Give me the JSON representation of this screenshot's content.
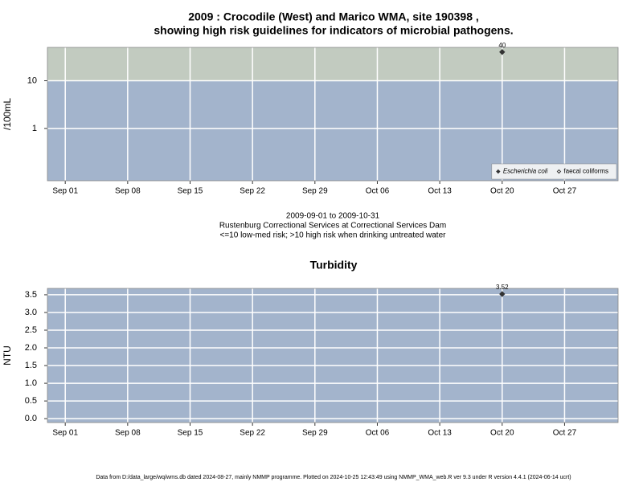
{
  "chart_data": [
    {
      "type": "scatter",
      "title": [
        "2009 : Crocodile (West) and Marico WMA, site 190398 ,",
        "showing high risk guidelines for indicators of microbial pathogens."
      ],
      "y_label": "/100mL",
      "notes": [
        "2009-09-01 to 2009-10-31",
        "Rustenburg Correctional Services at Correctional Services Dam",
        "<=10 low-med risk; >10 high risk when drinking untreated water"
      ],
      "log_scale": true,
      "threshold": 10,
      "band_colors": {
        "above": "#c2cbc0",
        "below": "#a3b4cc"
      },
      "grid": true,
      "legend": "bottom-right",
      "xlim": [
        "08-30",
        "11-02"
      ],
      "xticks": [
        {
          "value": "09-01",
          "label": "Sep 01"
        },
        {
          "value": "09-08",
          "label": "Sep 08"
        },
        {
          "value": "09-15",
          "label": "Sep 15"
        },
        {
          "value": "09-22",
          "label": "Sep 22"
        },
        {
          "value": "09-29",
          "label": "Sep 29"
        },
        {
          "value": "10-06",
          "label": "Oct 06"
        },
        {
          "value": "10-13",
          "label": "Oct 13"
        },
        {
          "value": "10-20",
          "label": "Oct 20"
        },
        {
          "value": "10-27",
          "label": "Oct 27"
        }
      ],
      "ylim": [
        0.08,
        50
      ],
      "yticks": [
        1,
        10
      ],
      "series": [
        {
          "name": "Escherichia coli",
          "color": "#333333",
          "marker": "filled",
          "font_style": "italic",
          "x": [
            "10-20"
          ],
          "values": [
            40
          ]
        },
        {
          "name": "faecal coliforms",
          "color": "#333333",
          "marker": "open",
          "font_style": "normal",
          "x": [],
          "values": []
        }
      ]
    },
    {
      "type": "scatter",
      "title": [
        "Turbidity"
      ],
      "y_label": "NTU",
      "log_scale": false,
      "background": "#a3b4cc",
      "grid": true,
      "xlim": [
        "08-30",
        "11-02"
      ],
      "xticks": [
        {
          "value": "09-01",
          "label": "Sep 01"
        },
        {
          "value": "09-08",
          "label": "Sep 08"
        },
        {
          "value": "09-15",
          "label": "Sep 15"
        },
        {
          "value": "09-22",
          "label": "Sep 22"
        },
        {
          "value": "09-29",
          "label": "Sep 29"
        },
        {
          "value": "10-06",
          "label": "Oct 06"
        },
        {
          "value": "10-13",
          "label": "Oct 13"
        },
        {
          "value": "10-20",
          "label": "Oct 20"
        },
        {
          "value": "10-27",
          "label": "Oct 27"
        }
      ],
      "ylim": [
        -0.11,
        3.68
      ],
      "yticks": [
        {
          "value": 0,
          "label": "0.0"
        },
        0.5,
        {
          "value": 1,
          "label": "1.0"
        },
        1.5,
        {
          "value": 2,
          "label": "2.0"
        },
        2.5,
        {
          "value": 3,
          "label": "3.0"
        },
        3.5
      ],
      "series": [
        {
          "name": "Turbidity",
          "color": "#333333",
          "marker": "filled",
          "x": [
            "10-20"
          ],
          "values": [
            3.52
          ]
        }
      ]
    }
  ],
  "footer": "Data from D:/data_large/wq/wms.db dated 2024-08-27, mainly NMMP programme. Plotted on 2024-10-25 12:43:49 using NMMP_WMA_web.R ver 9.3 under R version 4.4.1 (2024-06-14 ucrt)"
}
